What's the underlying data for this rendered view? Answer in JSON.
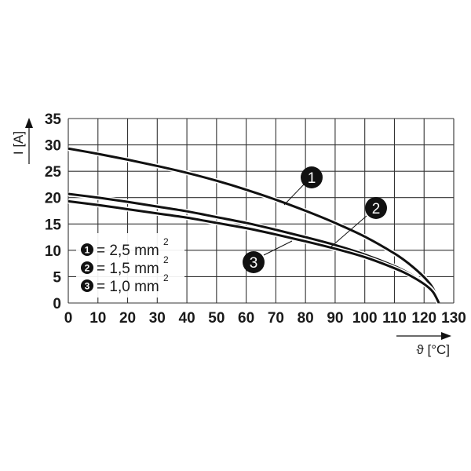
{
  "chart_data": {
    "type": "line",
    "title": "",
    "xlabel": "ϑ [°C]",
    "ylabel": "I [A]",
    "xlim": [
      0,
      130
    ],
    "ylim": [
      0,
      35
    ],
    "xticks": [
      0,
      10,
      20,
      30,
      40,
      50,
      60,
      70,
      80,
      90,
      100,
      110,
      120,
      130
    ],
    "yticks": [
      0,
      5,
      10,
      15,
      20,
      25,
      30,
      35
    ],
    "grid": true,
    "legend_position": "lower-left inside",
    "series": [
      {
        "name": "1 = 2,5 mm²",
        "x": [
          0,
          10,
          20,
          30,
          40,
          50,
          60,
          70,
          80,
          90,
          100,
          110,
          115,
          120,
          123,
          125
        ],
        "y": [
          29.3,
          28.3,
          27.2,
          26.0,
          24.7,
          23.2,
          21.5,
          19.6,
          17.5,
          15.2,
          12.6,
          9.4,
          7.4,
          4.9,
          2.8,
          0
        ]
      },
      {
        "name": "2 = 1,5 mm²",
        "x": [
          0,
          10,
          20,
          30,
          40,
          50,
          60,
          70,
          80,
          90,
          100,
          110,
          115,
          120,
          123,
          125
        ],
        "y": [
          20.7,
          20.0,
          19.2,
          18.3,
          17.4,
          16.3,
          15.2,
          13.9,
          12.5,
          11.0,
          9.2,
          7.0,
          5.6,
          3.8,
          2.2,
          0
        ]
      },
      {
        "name": "3 = 1,0 mm²",
        "x": [
          0,
          10,
          20,
          30,
          40,
          50,
          60,
          70,
          80,
          90,
          100,
          110,
          115,
          120,
          123,
          125
        ],
        "y": [
          19.3,
          18.6,
          17.8,
          17.0,
          16.2,
          15.2,
          14.2,
          13.0,
          11.7,
          10.3,
          8.7,
          6.6,
          5.3,
          3.6,
          2.1,
          0
        ]
      }
    ]
  },
  "legend": {
    "items": [
      {
        "badge": "1",
        "text": "= 2,5 mm",
        "sup": "2"
      },
      {
        "badge": "2",
        "text": "= 1,5 mm",
        "sup": "2"
      },
      {
        "badge": "3",
        "text": "= 1,0 mm",
        "sup": "2"
      }
    ]
  },
  "callouts": [
    {
      "label": "1"
    },
    {
      "label": "2"
    },
    {
      "label": "3"
    }
  ],
  "axes": {
    "y_label": "I [A]",
    "x_label": "ϑ [°C]"
  }
}
